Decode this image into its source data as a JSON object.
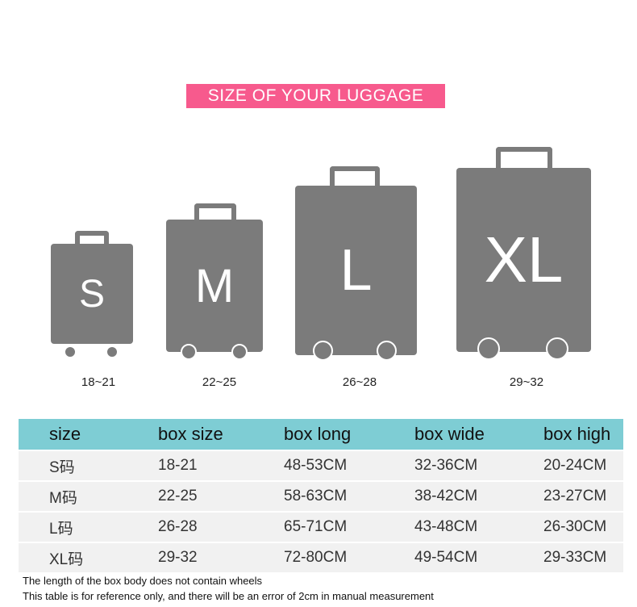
{
  "title": "SIZE OF YOUR LUGGAGE",
  "suitcases": [
    {
      "letter": "S",
      "range": "18~21"
    },
    {
      "letter": "M",
      "range": "22~25"
    },
    {
      "letter": "L",
      "range": "26~28"
    },
    {
      "letter": "XL",
      "range": "29~32"
    }
  ],
  "colors": {
    "banner": "#f75a8d",
    "suitcase": "#7b7b7b",
    "table_header": "#7ecdd4"
  },
  "table": {
    "headers": [
      "size",
      "box size",
      "box long",
      "box wide",
      "box high"
    ],
    "rows": [
      [
        "S码",
        "18-21",
        "48-53CM",
        "32-36CM",
        "20-24CM"
      ],
      [
        "M码",
        "22-25",
        "58-63CM",
        "38-42CM",
        "23-27CM"
      ],
      [
        "L码",
        "26-28",
        "65-71CM",
        "43-48CM",
        "26-30CM"
      ],
      [
        "XL码",
        "29-32",
        "72-80CM",
        "49-54CM",
        "29-33CM"
      ]
    ]
  },
  "notes": [
    "The length of the box body does not contain wheels",
    "This table is for reference only, and there will be an error of 2cm in manual measurement"
  ]
}
